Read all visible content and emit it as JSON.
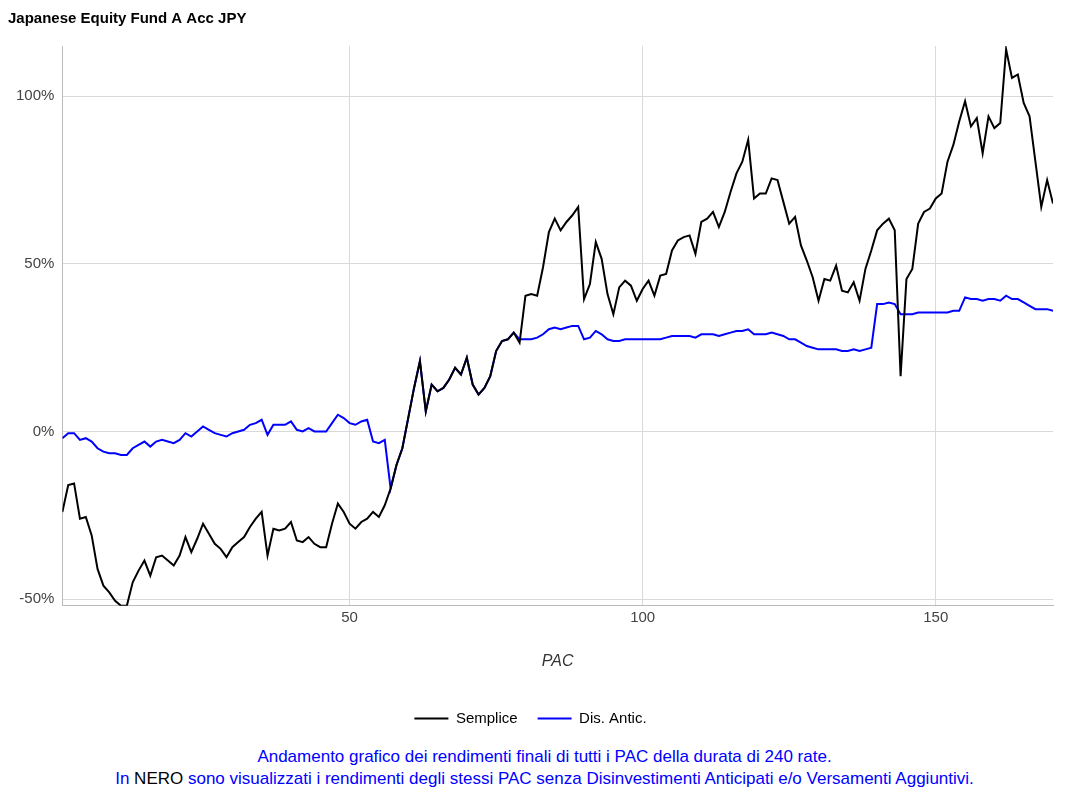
{
  "chart_data": {
    "type": "line",
    "title": "Japanese Equity Fund A Acc JPY",
    "x_label": "PAC",
    "x": [
      1,
      2,
      3,
      4,
      5,
      6,
      7,
      8,
      9,
      10,
      11,
      12,
      13,
      14,
      15,
      16,
      17,
      18,
      19,
      20,
      21,
      22,
      23,
      24,
      25,
      26,
      27,
      28,
      29,
      30,
      31,
      32,
      33,
      34,
      35,
      36,
      37,
      38,
      39,
      40,
      41,
      42,
      43,
      44,
      45,
      46,
      47,
      48,
      49,
      50,
      51,
      52,
      53,
      54,
      55,
      56,
      57,
      58,
      59,
      60,
      61,
      62,
      63,
      64,
      65,
      66,
      67,
      68,
      69,
      70,
      71,
      72,
      73,
      74,
      75,
      76,
      77,
      78,
      79,
      80,
      81,
      82,
      83,
      84,
      85,
      86,
      87,
      88,
      89,
      90,
      91,
      92,
      93,
      94,
      95,
      96,
      97,
      98,
      99,
      100,
      101,
      102,
      103,
      104,
      105,
      106,
      107,
      108,
      109,
      110,
      111,
      112,
      113,
      114,
      115,
      116,
      117,
      118,
      119,
      120,
      121,
      122,
      123,
      124,
      125,
      126,
      127,
      128,
      129,
      130,
      131,
      132,
      133,
      134,
      135,
      136,
      137,
      138,
      139,
      140,
      141,
      142,
      143,
      144,
      145,
      146,
      147,
      148,
      149,
      150,
      151,
      152,
      153,
      154,
      155,
      156,
      157,
      158,
      159,
      160,
      161,
      162,
      163,
      164,
      165,
      166,
      167,
      168,
      169,
      170
    ],
    "series": [
      {
        "name": "Dis. Antic.",
        "color": "#0000ff",
        "values": [
          -2,
          -0.5,
          -0.5,
          -2.5,
          -2,
          -3,
          -5,
          -6,
          -6.5,
          -6.5,
          -7,
          -7,
          -5,
          -4,
          -3,
          -4.5,
          -3,
          -2.5,
          -3,
          -3.5,
          -2.5,
          -0.5,
          -1.5,
          0,
          1.5,
          0.5,
          -0.5,
          -1,
          -1.5,
          -0.5,
          0,
          0.5,
          2,
          2.5,
          3.5,
          -1,
          2,
          2,
          2,
          3,
          0.5,
          0,
          1,
          0,
          0,
          0,
          2.5,
          5,
          4,
          2.5,
          2,
          3,
          3.5,
          -3,
          -3.5,
          -2.5,
          -17,
          -10,
          -5,
          4,
          13,
          21,
          6,
          14,
          12,
          13,
          15.5,
          19,
          17,
          22,
          14,
          11,
          13,
          16.5,
          24,
          27,
          27.5,
          29.5,
          27.5,
          27.5,
          27.5,
          28,
          29,
          30.5,
          31,
          30.5,
          31,
          31.5,
          31.5,
          27.5,
          28,
          30,
          29,
          27.5,
          27,
          27,
          27.5,
          27.5,
          27.5,
          27.5,
          27.5,
          27.5,
          27.5,
          28,
          28.5,
          28.5,
          28.5,
          28.5,
          28,
          29,
          29,
          29,
          28.5,
          29,
          29.5,
          30,
          30,
          30.5,
          29,
          29,
          29,
          29.5,
          29,
          28.5,
          27.5,
          27.5,
          26.5,
          25.5,
          25,
          24.5,
          24.5,
          24.5,
          24.5,
          24,
          24,
          24.5,
          24,
          24.5,
          25,
          38,
          38,
          38.5,
          38,
          35,
          35,
          35,
          35.5,
          35.5,
          35.5,
          35.5,
          35.5,
          35.5,
          36,
          36,
          40,
          39.5,
          39.5,
          39,
          39.5,
          39.5,
          39,
          40.5,
          39.5,
          39.5,
          38.5,
          37.5,
          36.5,
          36.5,
          36.5,
          36
        ]
      },
      {
        "name": "Semplice",
        "color": "#000000",
        "values": [
          -24,
          -16,
          -15.5,
          -26,
          -25.5,
          -31,
          -41,
          -46,
          -48,
          -50.5,
          -52,
          -52,
          -45,
          -41.5,
          -38.5,
          -43,
          -37.5,
          -37,
          -38.5,
          -40,
          -37,
          -31.5,
          -36,
          -32,
          -27.5,
          -30.5,
          -33.5,
          -35,
          -37.5,
          -34.5,
          -33,
          -31.5,
          -28.5,
          -26,
          -24,
          -37,
          -29,
          -29.5,
          -29,
          -27,
          -32.5,
          -33,
          -31.5,
          -33.5,
          -34.5,
          -34.5,
          -27.5,
          -21.5,
          -24,
          -27.5,
          -29,
          -27,
          -26,
          -24,
          -25.5,
          -22,
          -17,
          -10,
          -5,
          4,
          13,
          21,
          6,
          14,
          12,
          13,
          15.5,
          19,
          17,
          22,
          14,
          11,
          13,
          16.5,
          24,
          27,
          27.5,
          29.5,
          26.5,
          40.5,
          41,
          40.5,
          49,
          59.5,
          63.5,
          60,
          62.5,
          64.5,
          67,
          39.5,
          44,
          56.5,
          51.5,
          41,
          35,
          43,
          45,
          43.5,
          39,
          42.5,
          45,
          40.5,
          46.5,
          47,
          54,
          57,
          58,
          58.5,
          53,
          62.5,
          63.5,
          65.5,
          61,
          65.5,
          71.5,
          77,
          80.5,
          87,
          69.5,
          71,
          71,
          75.5,
          75,
          68.5,
          62,
          64,
          55.5,
          51,
          46,
          39,
          45.5,
          45,
          49.5,
          42,
          41.5,
          44.5,
          39,
          48.5,
          54,
          60,
          62,
          63.5,
          60,
          16.5,
          45.5,
          48.5,
          62,
          65.5,
          66.5,
          69.5,
          71,
          80.5,
          85.5,
          92.5,
          98.5,
          91,
          93.5,
          83,
          94,
          90.5,
          92,
          114,
          105.5,
          106.5,
          98,
          94,
          80.5,
          67,
          75,
          68
        ]
      }
    ],
    "xlim": [
      1,
      170
    ],
    "xticks": [
      50,
      100,
      150
    ],
    "ylim": [
      -52,
      115
    ],
    "yticks": [
      {
        "value": -50,
        "label": "-50%"
      },
      {
        "value": 0,
        "label": "0%"
      },
      {
        "value": 50,
        "label": "50%"
      },
      {
        "value": 100,
        "label": "100%"
      }
    ],
    "grid": true,
    "legend": "bottom",
    "caption": [
      [
        {
          "text": "Andamento grafico dei rendimenti finali di tutti i PAC della durata di 240 rate.",
          "color": "#0000ff"
        }
      ],
      [
        {
          "text": "In ",
          "color": "#0000ff"
        },
        {
          "text": "NERO",
          "color": "#000000"
        },
        {
          "text": " sono visualizzati i rendimenti degli stessi PAC senza Disinvestimenti Anticipati e/o Versamenti Aggiuntivi.",
          "color": "#0000ff"
        }
      ]
    ]
  }
}
